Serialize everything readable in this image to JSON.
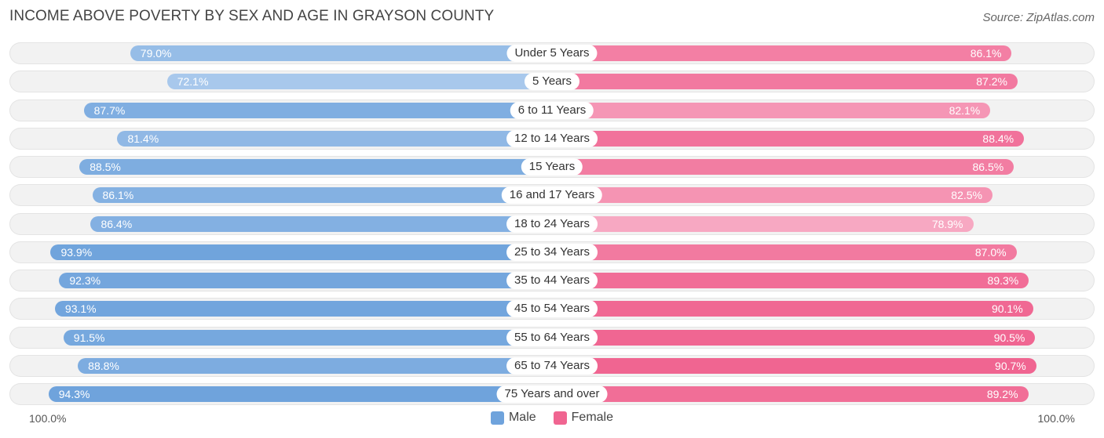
{
  "title": "INCOME ABOVE POVERTY BY SEX AND AGE IN GRAYSON COUNTY",
  "source": "Source: ZipAtlas.com",
  "colors": {
    "male_base": "#6fa3dc",
    "male_light": "#a8c8ec",
    "female_base": "#f06591",
    "female_light": "#f7a8c2"
  },
  "chart_data": {
    "type": "bar",
    "orientation": "horizontal-diverging",
    "title": "INCOME ABOVE POVERTY BY SEX AND AGE IN GRAYSON COUNTY",
    "categories": [
      "Under 5 Years",
      "5 Years",
      "6 to 11 Years",
      "12 to 14 Years",
      "15 Years",
      "16 and 17 Years",
      "18 to 24 Years",
      "25 to 34 Years",
      "35 to 44 Years",
      "45 to 54 Years",
      "55 to 64 Years",
      "65 to 74 Years",
      "75 Years and over"
    ],
    "series": [
      {
        "name": "Male",
        "values": [
          79.0,
          72.1,
          87.7,
          81.4,
          88.5,
          86.1,
          86.4,
          93.9,
          92.3,
          93.1,
          91.5,
          88.8,
          94.3
        ],
        "labels": [
          "79.0%",
          "72.1%",
          "87.7%",
          "81.4%",
          "88.5%",
          "86.1%",
          "86.4%",
          "93.9%",
          "92.3%",
          "93.1%",
          "91.5%",
          "88.8%",
          "94.3%"
        ]
      },
      {
        "name": "Female",
        "values": [
          86.1,
          87.2,
          82.1,
          88.4,
          86.5,
          82.5,
          78.9,
          87.0,
          89.3,
          90.1,
          90.5,
          90.7,
          89.2
        ],
        "labels": [
          "86.1%",
          "87.2%",
          "82.1%",
          "88.4%",
          "86.5%",
          "82.5%",
          "78.9%",
          "87.0%",
          "89.3%",
          "90.1%",
          "90.5%",
          "90.7%",
          "89.2%"
        ]
      }
    ],
    "axis": {
      "left_label": "100.0%",
      "right_label": "100.0%",
      "range": [
        0,
        100
      ]
    },
    "legend": [
      "Male",
      "Female"
    ]
  }
}
